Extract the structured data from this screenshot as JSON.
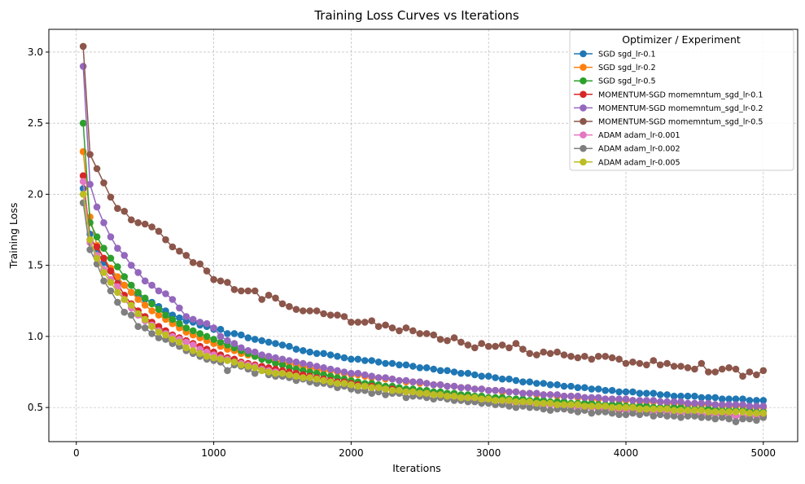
{
  "chart_data": {
    "type": "line",
    "title": "Training Loss Curves vs Iterations",
    "xlabel": "Iterations",
    "ylabel": "Training Loss",
    "xlim": [
      -200,
      5250
    ],
    "ylim": [
      0.26,
      3.16
    ],
    "xticks": [
      0,
      1000,
      2000,
      3000,
      4000,
      5000
    ],
    "yticks": [
      0.5,
      1.0,
      1.5,
      2.0,
      2.5,
      3.0
    ],
    "xtick_labels": [
      "0",
      "1000",
      "2000",
      "3000",
      "4000",
      "5000"
    ],
    "ytick_labels": [
      "0.5",
      "1.0",
      "1.5",
      "2.0",
      "2.5",
      "3.0"
    ],
    "grid": true,
    "legend": {
      "title": "Optimizer / Experiment",
      "placement": "top-right"
    },
    "x": [
      50,
      100,
      150,
      200,
      250,
      300,
      350,
      400,
      450,
      500,
      550,
      600,
      650,
      700,
      750,
      800,
      850,
      900,
      950,
      1000,
      1050,
      1100,
      1150,
      1200,
      1250,
      1300,
      1350,
      1400,
      1450,
      1500,
      1550,
      1600,
      1650,
      1700,
      1750,
      1800,
      1850,
      1900,
      1950,
      2000,
      2050,
      2100,
      2150,
      2200,
      2250,
      2300,
      2350,
      2400,
      2450,
      2500,
      2550,
      2600,
      2650,
      2700,
      2750,
      2800,
      2850,
      2900,
      2950,
      3000,
      3050,
      3100,
      3150,
      3200,
      3250,
      3300,
      3350,
      3400,
      3450,
      3500,
      3550,
      3600,
      3650,
      3700,
      3750,
      3800,
      3850,
      3900,
      3950,
      4000,
      4050,
      4100,
      4150,
      4200,
      4250,
      4300,
      4350,
      4400,
      4450,
      4500,
      4550,
      4600,
      4650,
      4700,
      4750,
      4800,
      4850,
      4900,
      4950,
      5000
    ],
    "series": [
      {
        "name": "SGD sgd_lr-0.1",
        "color": "#1f77b4",
        "values": [
          2.04,
          1.72,
          1.6,
          1.52,
          1.46,
          1.41,
          1.36,
          1.31,
          1.29,
          1.26,
          1.24,
          1.21,
          1.18,
          1.15,
          1.13,
          1.11,
          1.1,
          1.08,
          1.07,
          1.05,
          1.05,
          1.02,
          1.02,
          1.01,
          0.99,
          0.98,
          0.97,
          0.96,
          0.95,
          0.94,
          0.93,
          0.91,
          0.9,
          0.89,
          0.88,
          0.88,
          0.87,
          0.86,
          0.85,
          0.84,
          0.84,
          0.83,
          0.83,
          0.82,
          0.81,
          0.81,
          0.8,
          0.8,
          0.79,
          0.78,
          0.78,
          0.77,
          0.76,
          0.76,
          0.75,
          0.74,
          0.74,
          0.73,
          0.72,
          0.72,
          0.71,
          0.7,
          0.7,
          0.69,
          0.68,
          0.68,
          0.67,
          0.67,
          0.66,
          0.66,
          0.65,
          0.65,
          0.64,
          0.64,
          0.63,
          0.63,
          0.62,
          0.62,
          0.61,
          0.61,
          0.61,
          0.6,
          0.6,
          0.6,
          0.59,
          0.59,
          0.58,
          0.58,
          0.58,
          0.58,
          0.57,
          0.57,
          0.57,
          0.56,
          0.56,
          0.56,
          0.56,
          0.55,
          0.55,
          0.55
        ]
      },
      {
        "name": "SGD sgd_lr-0.2",
        "color": "#ff7f0e",
        "values": [
          2.3,
          1.84,
          1.64,
          1.55,
          1.48,
          1.42,
          1.36,
          1.31,
          1.26,
          1.22,
          1.18,
          1.15,
          1.12,
          1.09,
          1.06,
          1.03,
          1.01,
          0.99,
          0.97,
          0.95,
          0.93,
          0.91,
          0.9,
          0.88,
          0.87,
          0.86,
          0.85,
          0.84,
          0.83,
          0.82,
          0.81,
          0.8,
          0.79,
          0.78,
          0.77,
          0.76,
          0.76,
          0.75,
          0.74,
          0.73,
          0.73,
          0.72,
          0.71,
          0.71,
          0.7,
          0.7,
          0.69,
          0.68,
          0.68,
          0.67,
          0.67,
          0.66,
          0.66,
          0.65,
          0.65,
          0.64,
          0.64,
          0.63,
          0.63,
          0.62,
          0.62,
          0.61,
          0.61,
          0.61,
          0.6,
          0.6,
          0.59,
          0.59,
          0.59,
          0.58,
          0.58,
          0.58,
          0.57,
          0.57,
          0.56,
          0.56,
          0.56,
          0.56,
          0.55,
          0.55,
          0.55,
          0.54,
          0.54,
          0.54,
          0.54,
          0.53,
          0.53,
          0.53,
          0.52,
          0.52,
          0.52,
          0.52,
          0.52,
          0.51,
          0.51,
          0.51,
          0.51,
          0.5,
          0.5,
          0.5
        ]
      },
      {
        "name": "SGD sgd_lr-0.5",
        "color": "#2ca02c",
        "values": [
          2.5,
          1.8,
          1.7,
          1.62,
          1.55,
          1.49,
          1.42,
          1.36,
          1.31,
          1.27,
          1.23,
          1.19,
          1.15,
          1.12,
          1.09,
          1.06,
          1.04,
          1.02,
          1.0,
          0.98,
          0.96,
          0.94,
          0.92,
          0.9,
          0.88,
          0.86,
          0.84,
          0.83,
          0.81,
          0.8,
          0.78,
          0.77,
          0.76,
          0.75,
          0.74,
          0.73,
          0.72,
          0.71,
          0.7,
          0.69,
          0.68,
          0.67,
          0.67,
          0.66,
          0.65,
          0.65,
          0.64,
          0.63,
          0.63,
          0.62,
          0.62,
          0.61,
          0.61,
          0.6,
          0.6,
          0.59,
          0.59,
          0.58,
          0.58,
          0.57,
          0.57,
          0.57,
          0.56,
          0.56,
          0.56,
          0.55,
          0.55,
          0.55,
          0.54,
          0.54,
          0.54,
          0.53,
          0.53,
          0.53,
          0.53,
          0.52,
          0.52,
          0.52,
          0.52,
          0.51,
          0.51,
          0.51,
          0.51,
          0.5,
          0.5,
          0.5,
          0.5,
          0.5,
          0.49,
          0.49,
          0.49,
          0.49,
          0.49,
          0.48,
          0.48,
          0.48,
          0.48,
          0.48,
          0.47,
          0.47
        ]
      },
      {
        "name": "MOMENTUM-SGD momemntum_sgd_lr-0.1",
        "color": "#d62728",
        "values": [
          2.13,
          1.68,
          1.63,
          1.55,
          1.46,
          1.37,
          1.29,
          1.23,
          1.18,
          1.14,
          1.1,
          1.07,
          1.04,
          1.01,
          0.99,
          0.97,
          0.95,
          0.93,
          0.91,
          0.89,
          0.87,
          0.85,
          0.84,
          0.82,
          0.81,
          0.8,
          0.79,
          0.78,
          0.77,
          0.76,
          0.75,
          0.74,
          0.73,
          0.72,
          0.71,
          0.7,
          0.69,
          0.68,
          0.68,
          0.67,
          0.66,
          0.65,
          0.65,
          0.64,
          0.63,
          0.63,
          0.62,
          0.61,
          0.61,
          0.6,
          0.6,
          0.59,
          0.59,
          0.58,
          0.58,
          0.57,
          0.57,
          0.56,
          0.56,
          0.55,
          0.55,
          0.54,
          0.54,
          0.53,
          0.53,
          0.53,
          0.52,
          0.52,
          0.52,
          0.51,
          0.51,
          0.51,
          0.5,
          0.5,
          0.5,
          0.49,
          0.49,
          0.49,
          0.48,
          0.48,
          0.48,
          0.48,
          0.47,
          0.47,
          0.47,
          0.47,
          0.46,
          0.46,
          0.46,
          0.46,
          0.45,
          0.45,
          0.45,
          0.45,
          0.45,
          0.44,
          0.44,
          0.44,
          0.44,
          0.44
        ]
      },
      {
        "name": "MOMENTUM-SGD momemntum_sgd_lr-0.2",
        "color": "#9467bd",
        "values": [
          2.9,
          2.07,
          1.91,
          1.8,
          1.7,
          1.62,
          1.57,
          1.5,
          1.45,
          1.39,
          1.36,
          1.32,
          1.3,
          1.26,
          1.2,
          1.14,
          1.12,
          1.1,
          1.09,
          1.06,
          1.0,
          0.97,
          0.95,
          0.92,
          0.9,
          0.89,
          0.87,
          0.86,
          0.85,
          0.84,
          0.83,
          0.82,
          0.81,
          0.8,
          0.79,
          0.78,
          0.77,
          0.76,
          0.75,
          0.74,
          0.74,
          0.73,
          0.72,
          0.71,
          0.71,
          0.7,
          0.69,
          0.69,
          0.68,
          0.68,
          0.67,
          0.66,
          0.66,
          0.65,
          0.65,
          0.64,
          0.64,
          0.63,
          0.63,
          0.62,
          0.62,
          0.62,
          0.61,
          0.61,
          0.6,
          0.6,
          0.6,
          0.59,
          0.59,
          0.59,
          0.58,
          0.58,
          0.58,
          0.57,
          0.57,
          0.57,
          0.56,
          0.56,
          0.56,
          0.56,
          0.55,
          0.55,
          0.55,
          0.55,
          0.54,
          0.54,
          0.54,
          0.54,
          0.53,
          0.53,
          0.53,
          0.53,
          0.52,
          0.52,
          0.52,
          0.52,
          0.52,
          0.51,
          0.51,
          0.51
        ]
      },
      {
        "name": "MOMENTUM-SGD momemntum_sgd_lr-0.5",
        "color": "#8c564b",
        "values": [
          3.04,
          2.28,
          2.18,
          2.08,
          1.98,
          1.9,
          1.88,
          1.82,
          1.8,
          1.79,
          1.77,
          1.74,
          1.68,
          1.63,
          1.6,
          1.57,
          1.52,
          1.51,
          1.46,
          1.4,
          1.39,
          1.38,
          1.33,
          1.32,
          1.32,
          1.32,
          1.26,
          1.29,
          1.27,
          1.23,
          1.21,
          1.19,
          1.18,
          1.18,
          1.18,
          1.16,
          1.15,
          1.15,
          1.14,
          1.1,
          1.1,
          1.1,
          1.11,
          1.07,
          1.08,
          1.06,
          1.04,
          1.06,
          1.04,
          1.02,
          1.02,
          1.01,
          0.98,
          0.97,
          0.99,
          0.96,
          0.94,
          0.92,
          0.95,
          0.93,
          0.93,
          0.94,
          0.92,
          0.95,
          0.91,
          0.88,
          0.87,
          0.89,
          0.88,
          0.89,
          0.87,
          0.86,
          0.85,
          0.86,
          0.84,
          0.86,
          0.86,
          0.85,
          0.84,
          0.81,
          0.82,
          0.81,
          0.8,
          0.83,
          0.8,
          0.81,
          0.79,
          0.79,
          0.78,
          0.77,
          0.81,
          0.75,
          0.75,
          0.77,
          0.78,
          0.77,
          0.72,
          0.75,
          0.73,
          0.76
        ]
      },
      {
        "name": "ADAM adam_lr-0.001",
        "color": "#e377c2",
        "values": [
          2.09,
          1.66,
          1.57,
          1.47,
          1.4,
          1.35,
          1.26,
          1.2,
          1.15,
          1.11,
          1.08,
          1.04,
          1.02,
          1.0,
          0.98,
          0.96,
          0.94,
          0.91,
          0.89,
          0.87,
          0.85,
          0.84,
          0.82,
          0.81,
          0.8,
          0.79,
          0.77,
          0.76,
          0.75,
          0.74,
          0.73,
          0.72,
          0.71,
          0.71,
          0.7,
          0.69,
          0.68,
          0.67,
          0.67,
          0.66,
          0.65,
          0.65,
          0.64,
          0.63,
          0.63,
          0.62,
          0.61,
          0.61,
          0.6,
          0.6,
          0.59,
          0.59,
          0.58,
          0.58,
          0.57,
          0.57,
          0.56,
          0.56,
          0.55,
          0.55,
          0.55,
          0.54,
          0.54,
          0.53,
          0.53,
          0.53,
          0.52,
          0.52,
          0.52,
          0.51,
          0.51,
          0.51,
          0.5,
          0.5,
          0.5,
          0.49,
          0.49,
          0.49,
          0.49,
          0.48,
          0.48,
          0.48,
          0.47,
          0.47,
          0.47,
          0.47,
          0.46,
          0.46,
          0.46,
          0.46,
          0.45,
          0.45,
          0.45,
          0.45,
          0.44,
          0.44,
          0.44,
          0.44,
          0.44,
          0.43
        ]
      },
      {
        "name": "ADAM adam_lr-0.002",
        "color": "#7f7f7f",
        "values": [
          1.94,
          1.61,
          1.51,
          1.39,
          1.32,
          1.24,
          1.17,
          1.15,
          1.07,
          1.06,
          1.02,
          0.99,
          0.98,
          0.95,
          0.93,
          0.9,
          0.88,
          0.86,
          0.84,
          0.83,
          0.82,
          0.76,
          0.8,
          0.79,
          0.77,
          0.74,
          0.76,
          0.73,
          0.72,
          0.72,
          0.71,
          0.69,
          0.7,
          0.68,
          0.67,
          0.67,
          0.66,
          0.64,
          0.65,
          0.63,
          0.62,
          0.62,
          0.6,
          0.61,
          0.59,
          0.6,
          0.6,
          0.57,
          0.58,
          0.58,
          0.57,
          0.56,
          0.57,
          0.56,
          0.55,
          0.55,
          0.54,
          0.54,
          0.53,
          0.53,
          0.52,
          0.52,
          0.51,
          0.5,
          0.51,
          0.5,
          0.5,
          0.49,
          0.48,
          0.49,
          0.49,
          0.48,
          0.47,
          0.48,
          0.46,
          0.47,
          0.47,
          0.46,
          0.45,
          0.45,
          0.46,
          0.45,
          0.46,
          0.44,
          0.45,
          0.44,
          0.44,
          0.43,
          0.44,
          0.44,
          0.43,
          0.43,
          0.42,
          0.43,
          0.42,
          0.4,
          0.42,
          0.42,
          0.41,
          0.43
        ]
      },
      {
        "name": "ADAM adam_lr-0.005",
        "color": "#bcbd22",
        "values": [
          2.0,
          1.68,
          1.55,
          1.45,
          1.38,
          1.31,
          1.26,
          1.22,
          1.16,
          1.12,
          1.07,
          1.03,
          1.01,
          0.98,
          0.96,
          0.92,
          0.9,
          0.88,
          0.86,
          0.85,
          0.84,
          0.83,
          0.82,
          0.8,
          0.79,
          0.78,
          0.76,
          0.75,
          0.74,
          0.74,
          0.73,
          0.72,
          0.71,
          0.71,
          0.7,
          0.69,
          0.68,
          0.67,
          0.67,
          0.66,
          0.65,
          0.65,
          0.64,
          0.64,
          0.63,
          0.62,
          0.62,
          0.61,
          0.61,
          0.6,
          0.6,
          0.59,
          0.59,
          0.58,
          0.58,
          0.57,
          0.57,
          0.57,
          0.56,
          0.56,
          0.55,
          0.55,
          0.55,
          0.54,
          0.54,
          0.54,
          0.53,
          0.53,
          0.53,
          0.52,
          0.52,
          0.52,
          0.52,
          0.51,
          0.51,
          0.51,
          0.51,
          0.5,
          0.5,
          0.5,
          0.5,
          0.49,
          0.49,
          0.49,
          0.49,
          0.49,
          0.48,
          0.48,
          0.48,
          0.48,
          0.48,
          0.47,
          0.47,
          0.47,
          0.47,
          0.47,
          0.47,
          0.46,
          0.46,
          0.46
        ]
      }
    ]
  }
}
